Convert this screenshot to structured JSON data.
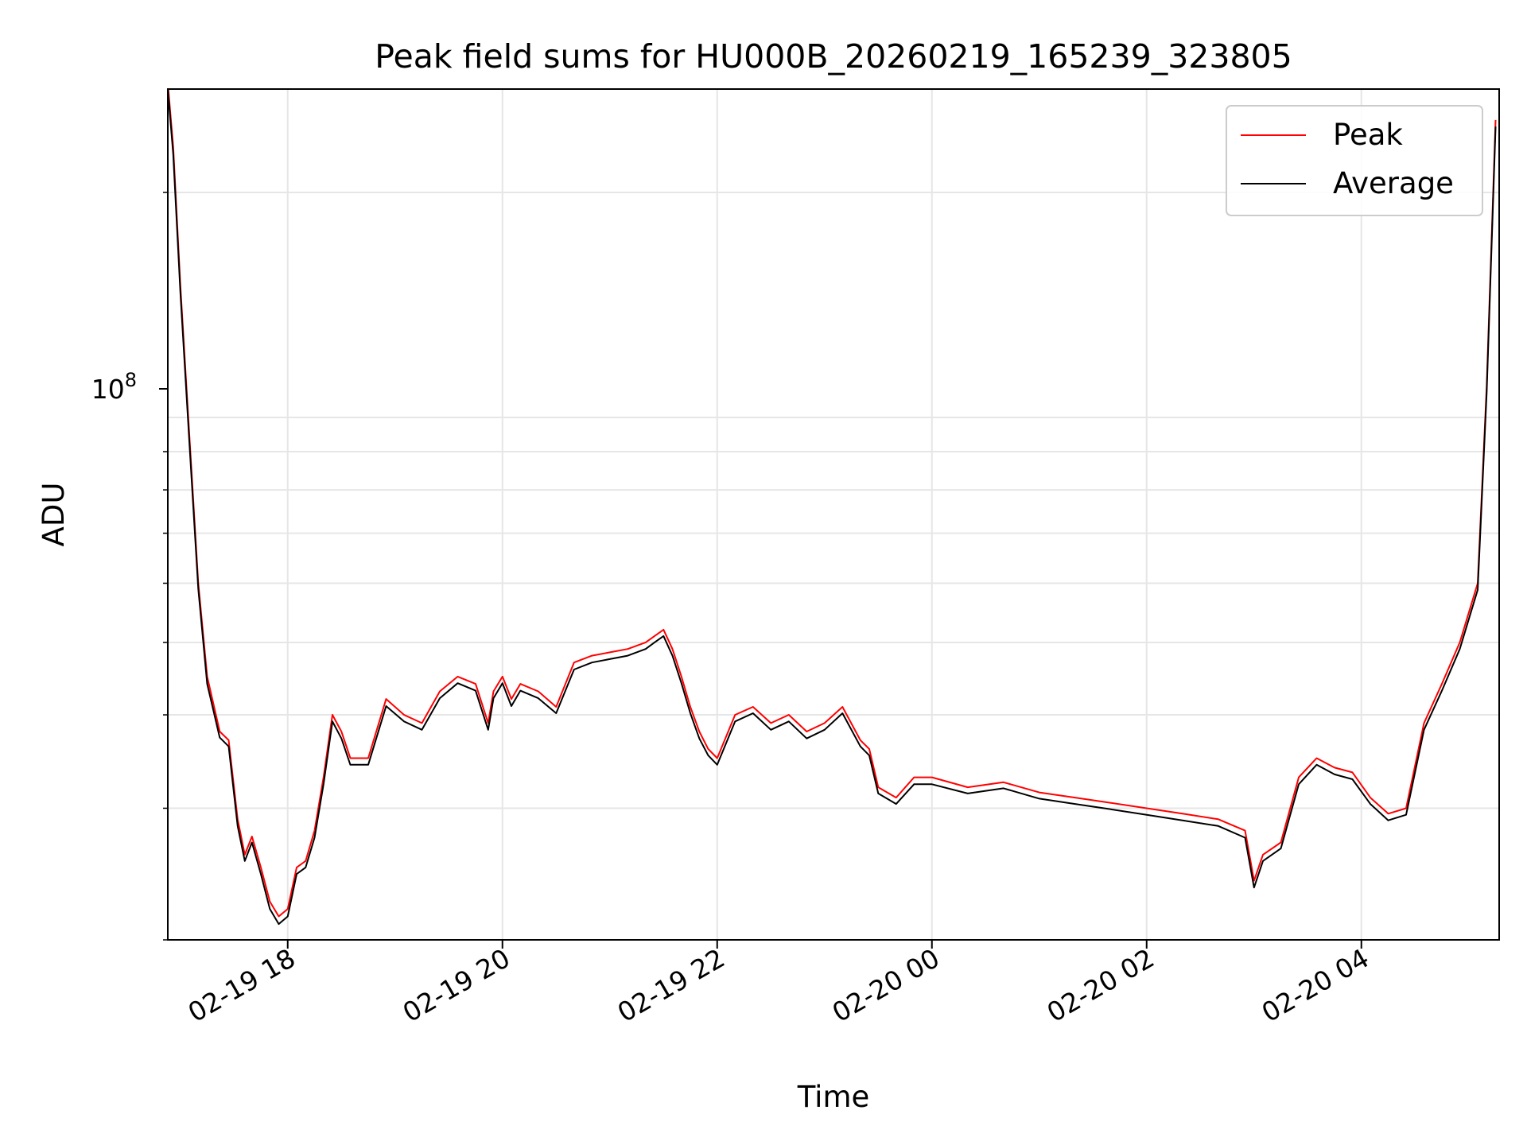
{
  "chart_data": {
    "type": "line",
    "title": "Peak field sums for HU000B_20260219_165239_323805",
    "xlabel": "Time",
    "ylabel": "ADU",
    "yscale": "log",
    "ylim": [
      20000000,
      275000000
    ],
    "xlim": [
      "2026-02-19 16:53",
      "2026-02-20 05:17"
    ],
    "x_ticks": [
      "02-19 18",
      "02-19 20",
      "02-19 22",
      "02-20 00",
      "02-20 02",
      "02-20 04"
    ],
    "y_major_tick": {
      "value": 100000000,
      "base": "10",
      "exponent": "8"
    },
    "grid": true,
    "legend_position": "top-right",
    "x": [
      "2026-02-19 16:53",
      "2026-02-19 16:56",
      "2026-02-19 17:00",
      "2026-02-19 17:05",
      "2026-02-19 17:10",
      "2026-02-19 17:15",
      "2026-02-19 17:22",
      "2026-02-19 17:27",
      "2026-02-19 17:32",
      "2026-02-19 17:36",
      "2026-02-19 17:40",
      "2026-02-19 17:45",
      "2026-02-19 17:50",
      "2026-02-19 17:55",
      "2026-02-19 18:00",
      "2026-02-19 18:05",
      "2026-02-19 18:10",
      "2026-02-19 18:15",
      "2026-02-19 18:20",
      "2026-02-19 18:25",
      "2026-02-19 18:30",
      "2026-02-19 18:35",
      "2026-02-19 18:45",
      "2026-02-19 18:55",
      "2026-02-19 19:05",
      "2026-02-19 19:15",
      "2026-02-19 19:25",
      "2026-02-19 19:35",
      "2026-02-19 19:45",
      "2026-02-19 19:52",
      "2026-02-19 19:55",
      "2026-02-19 20:00",
      "2026-02-19 20:05",
      "2026-02-19 20:10",
      "2026-02-19 20:20",
      "2026-02-19 20:30",
      "2026-02-19 20:40",
      "2026-02-19 20:50",
      "2026-02-19 21:00",
      "2026-02-19 21:10",
      "2026-02-19 21:20",
      "2026-02-19 21:25",
      "2026-02-19 21:30",
      "2026-02-19 21:35",
      "2026-02-19 21:40",
      "2026-02-19 21:45",
      "2026-02-19 21:50",
      "2026-02-19 21:55",
      "2026-02-19 22:00",
      "2026-02-19 22:10",
      "2026-02-19 22:20",
      "2026-02-19 22:30",
      "2026-02-19 22:40",
      "2026-02-19 22:50",
      "2026-02-19 23:00",
      "2026-02-19 23:10",
      "2026-02-19 23:20",
      "2026-02-19 23:25",
      "2026-02-19 23:30",
      "2026-02-19 23:40",
      "2026-02-19 23:50",
      "2026-02-20 00:00",
      "2026-02-20 00:20",
      "2026-02-20 00:40",
      "2026-02-20 01:00",
      "2026-02-20 01:20",
      "2026-02-20 01:40",
      "2026-02-20 02:00",
      "2026-02-20 02:20",
      "2026-02-20 02:40",
      "2026-02-20 02:55",
      "2026-02-20 03:00",
      "2026-02-20 03:05",
      "2026-02-20 03:15",
      "2026-02-20 03:25",
      "2026-02-20 03:35",
      "2026-02-20 03:45",
      "2026-02-20 03:55",
      "2026-02-20 04:05",
      "2026-02-20 04:15",
      "2026-02-20 04:25",
      "2026-02-20 04:35",
      "2026-02-20 04:45",
      "2026-02-20 04:55",
      "2026-02-20 05:05",
      "2026-02-20 05:10",
      "2026-02-20 05:15"
    ],
    "series": [
      {
        "name": "Peak",
        "color": "#ff0000",
        "values": [
          280000000,
          230000000,
          150000000,
          95000000,
          60000000,
          45000000,
          38000000,
          37000000,
          29000000,
          26000000,
          27500000,
          25000000,
          22500000,
          21500000,
          22000000,
          25000000,
          25500000,
          28000000,
          33000000,
          40000000,
          38000000,
          35000000,
          35000000,
          42000000,
          40000000,
          39000000,
          43000000,
          45000000,
          44000000,
          39000000,
          43000000,
          45000000,
          42000000,
          44000000,
          43000000,
          41000000,
          47000000,
          48000000,
          48500000,
          49000000,
          50000000,
          51000000,
          52000000,
          49000000,
          45000000,
          41000000,
          38000000,
          36000000,
          35000000,
          40000000,
          41000000,
          39000000,
          40000000,
          38000000,
          39000000,
          41000000,
          37000000,
          36000000,
          32000000,
          31000000,
          33000000,
          33000000,
          32000000,
          32500000,
          31500000,
          31000000,
          30500000,
          30000000,
          29500000,
          29000000,
          28000000,
          24000000,
          26000000,
          27000000,
          33000000,
          35000000,
          34000000,
          33500000,
          31000000,
          29500000,
          30000000,
          39000000,
          44000000,
          50000000,
          60000000,
          110000000,
          250000000
        ]
      },
      {
        "name": "Average",
        "color": "#000000",
        "values": [
          275000000,
          225000000,
          147000000,
          93000000,
          59000000,
          44000000,
          37300000,
          36300000,
          28400000,
          25500000,
          27000000,
          24500000,
          22000000,
          21000000,
          21500000,
          24500000,
          25000000,
          27400000,
          32300000,
          39200000,
          37200000,
          34300000,
          34300000,
          41100000,
          39200000,
          38200000,
          42100000,
          44100000,
          43100000,
          38200000,
          42100000,
          44100000,
          41100000,
          43100000,
          42100000,
          40200000,
          46000000,
          47000000,
          47500000,
          48000000,
          49000000,
          50000000,
          51000000,
          48000000,
          44100000,
          40200000,
          37200000,
          35300000,
          34300000,
          39200000,
          40200000,
          38200000,
          39200000,
          37200000,
          38200000,
          40200000,
          36300000,
          35300000,
          31400000,
          30400000,
          32300000,
          32300000,
          31400000,
          31900000,
          30900000,
          30400000,
          29900000,
          29400000,
          28900000,
          28400000,
          27400000,
          23500000,
          25500000,
          26500000,
          32300000,
          34300000,
          33300000,
          32800000,
          30400000,
          28900000,
          29400000,
          38200000,
          43100000,
          49000000,
          58800000,
          108000000,
          245000000
        ]
      }
    ]
  }
}
